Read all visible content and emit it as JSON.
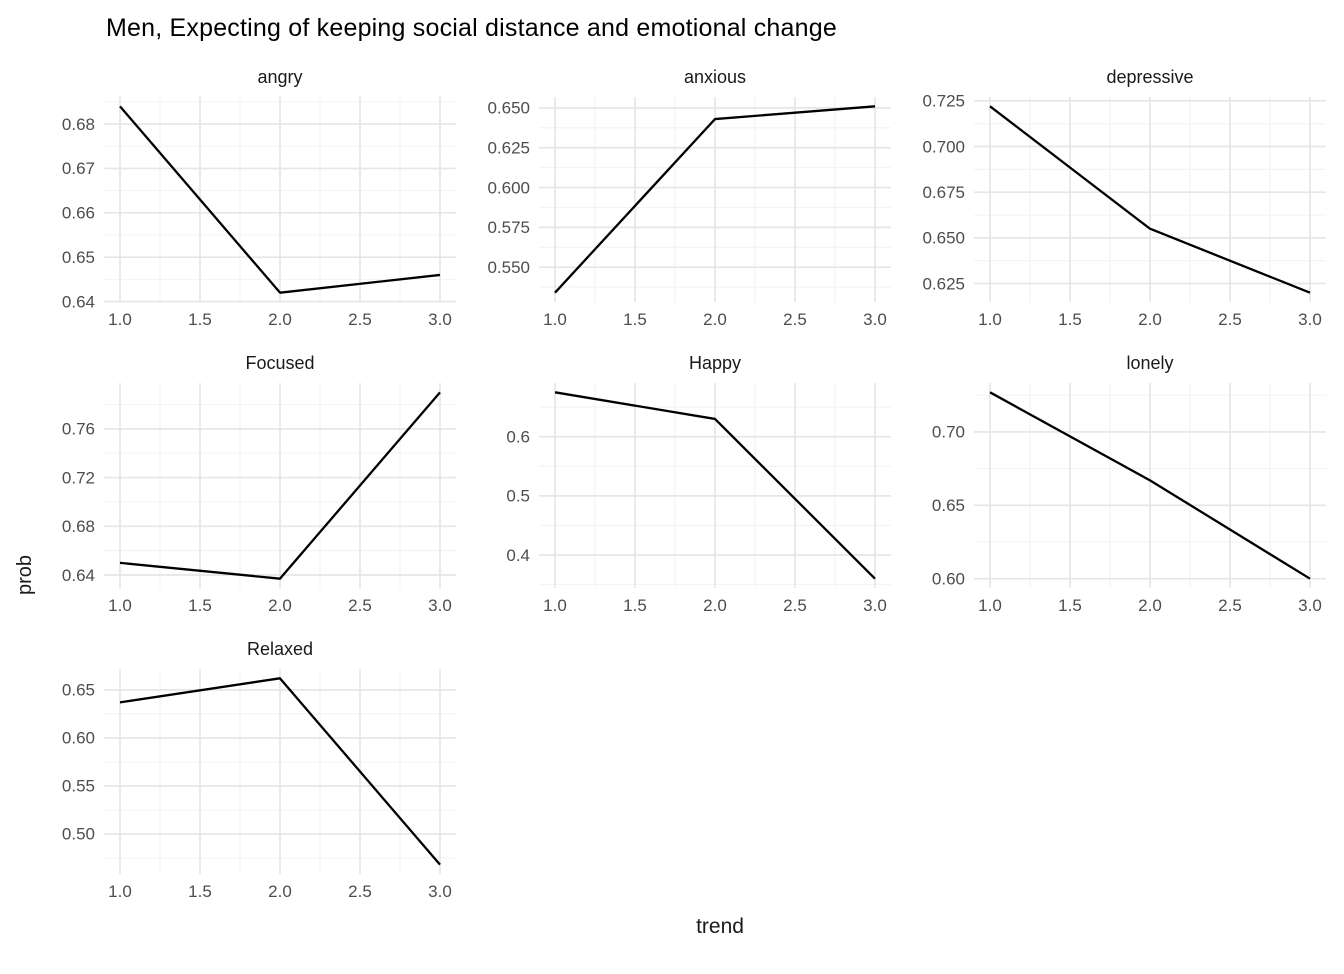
{
  "colors": {
    "background": "#ffffff",
    "grid_major": "#e6e6e6",
    "grid_minor": "#f3f3f3",
    "line": "#000000",
    "tick_text": "#4d4d4d",
    "strip_text": "#1a1a1a"
  },
  "chart_data": {
    "type": "line",
    "title": "Men, Expecting of keeping social distance and emotional change",
    "xlabel": "trend",
    "ylabel": "prob",
    "x": [
      1.0,
      2.0,
      3.0
    ],
    "xlim": [
      0.9,
      3.1
    ],
    "xticks": [
      "1.0",
      "1.5",
      "2.0",
      "2.5",
      "3.0"
    ],
    "grid": true,
    "legend": false,
    "facets": [
      {
        "title": "angry",
        "values": [
          0.684,
          0.642,
          0.646
        ],
        "yticks": [
          "0.64",
          "0.65",
          "0.66",
          "0.67",
          "0.68"
        ]
      },
      {
        "title": "anxious",
        "values": [
          0.534,
          0.643,
          0.651
        ],
        "yticks": [
          "0.550",
          "0.575",
          "0.600",
          "0.625",
          "0.650"
        ]
      },
      {
        "title": "depressive",
        "values": [
          0.722,
          0.655,
          0.62
        ],
        "yticks": [
          "0.625",
          "0.650",
          "0.675",
          "0.700",
          "0.725"
        ]
      },
      {
        "title": "Focused",
        "values": [
          0.65,
          0.637,
          0.79
        ],
        "yticks": [
          "0.64",
          "0.68",
          "0.72",
          "0.76"
        ]
      },
      {
        "title": "Happy",
        "values": [
          0.675,
          0.63,
          0.36
        ],
        "yticks": [
          "0.4",
          "0.5",
          "0.6"
        ]
      },
      {
        "title": "lonely",
        "values": [
          0.727,
          0.667,
          0.6
        ],
        "yticks": [
          "0.60",
          "0.65",
          "0.70"
        ]
      },
      {
        "title": "Relaxed",
        "values": [
          0.637,
          0.662,
          0.468
        ],
        "yticks": [
          "0.50",
          "0.55",
          "0.60",
          "0.65"
        ]
      }
    ]
  }
}
